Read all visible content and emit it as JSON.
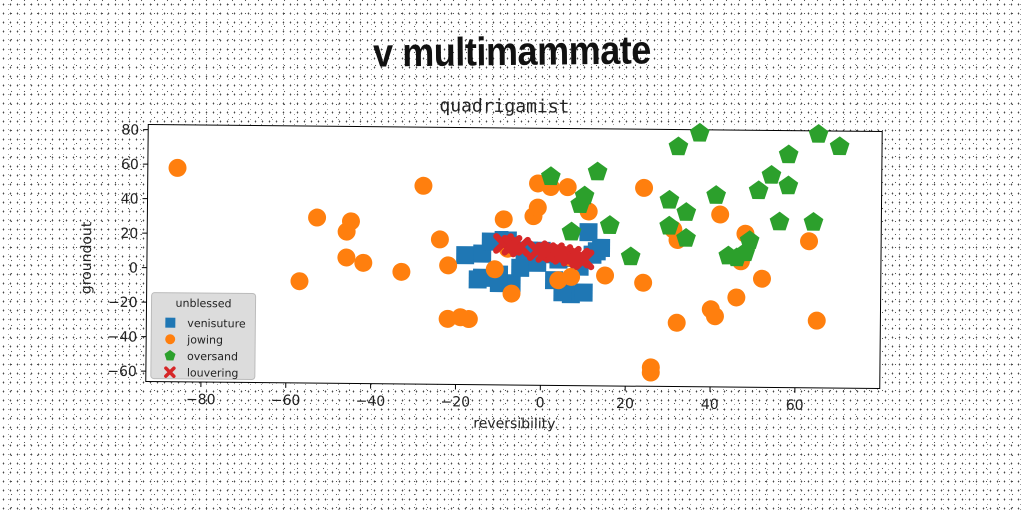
{
  "main_title": "v multimammate",
  "chart_data": {
    "type": "scatter",
    "title": "quadrigamist",
    "xlabel": "reversibility",
    "ylabel": "groundout",
    "xlim": [
      -93,
      80
    ],
    "ylim": [
      -66,
      83
    ],
    "xticks": [
      -80,
      -60,
      -40,
      -20,
      0,
      20,
      40,
      60
    ],
    "yticks": [
      -60,
      -40,
      -20,
      0,
      20,
      40,
      60,
      80
    ],
    "xtick_labels": [
      "−80",
      "−60",
      "−40",
      "−20",
      "0",
      "20",
      "40",
      "60"
    ],
    "ytick_labels": [
      "−60",
      "−40",
      "−20",
      "0",
      "20",
      "40",
      "60",
      "80"
    ],
    "grid": false,
    "legend": {
      "title": "unblessed",
      "placement": "lower-left"
    },
    "series": [
      {
        "name": "venisuture",
        "marker": "square",
        "color": "#1f77b4",
        "points": [
          [
            -18,
            9
          ],
          [
            -14,
            10
          ],
          [
            -12,
            17
          ],
          [
            -10,
            -2
          ],
          [
            -8,
            18
          ],
          [
            -7,
            -7
          ],
          [
            -14,
            -4
          ],
          [
            -15,
            -5
          ],
          [
            -10,
            -7
          ],
          [
            -5,
            2
          ],
          [
            -3,
            12
          ],
          [
            -1,
            5
          ],
          [
            2,
            10
          ],
          [
            4,
            7
          ],
          [
            6,
            8
          ],
          [
            7,
            -13
          ],
          [
            5,
            -12
          ],
          [
            10,
            -12
          ],
          [
            12,
            10
          ],
          [
            13,
            12
          ],
          [
            14,
            14
          ],
          [
            11,
            23
          ],
          [
            9,
            3
          ],
          [
            -4,
            12
          ],
          [
            -9,
            18
          ],
          [
            0,
            12
          ],
          [
            3,
            -5
          ]
        ]
      },
      {
        "name": "jowing",
        "marker": "circle",
        "color": "#ff7f0e",
        "points": [
          [
            -86,
            58
          ],
          [
            -57,
            -7
          ],
          [
            -53,
            30
          ],
          [
            -46,
            22
          ],
          [
            -45,
            28
          ],
          [
            -46,
            7
          ],
          [
            -42,
            4
          ],
          [
            -33,
            -1
          ],
          [
            -28,
            49
          ],
          [
            -24,
            18
          ],
          [
            -22,
            3
          ],
          [
            -22,
            -28
          ],
          [
            -19,
            -27
          ],
          [
            -17,
            -28
          ],
          [
            -11,
            1
          ],
          [
            -9,
            30
          ],
          [
            -8,
            13
          ],
          [
            -7,
            -13
          ],
          [
            -2,
            32
          ],
          [
            -1,
            37
          ],
          [
            -1,
            51
          ],
          [
            2,
            49
          ],
          [
            6,
            49
          ],
          [
            7,
            -3
          ],
          [
            4,
            -5
          ],
          [
            7,
            8
          ],
          [
            11,
            35
          ],
          [
            15,
            -2
          ],
          [
            24,
            -6
          ],
          [
            24,
            49
          ],
          [
            26,
            -55
          ],
          [
            26,
            -58
          ],
          [
            31,
            25
          ],
          [
            32,
            19
          ],
          [
            32,
            -29
          ],
          [
            40,
            -21
          ],
          [
            41,
            -25
          ],
          [
            42,
            34
          ],
          [
            46,
            -14
          ],
          [
            47,
            7
          ],
          [
            48,
            23
          ],
          [
            52,
            -3
          ],
          [
            63,
            19
          ],
          [
            65,
            -27
          ]
        ]
      },
      {
        "name": "oversand",
        "marker": "pentagon",
        "color": "#2ca02c",
        "points": [
          [
            2,
            55
          ],
          [
            9,
            39
          ],
          [
            10,
            44
          ],
          [
            13,
            58
          ],
          [
            7,
            23
          ],
          [
            16,
            27
          ],
          [
            21,
            9
          ],
          [
            30,
            27
          ],
          [
            30,
            42
          ],
          [
            32,
            73
          ],
          [
            34,
            20
          ],
          [
            34,
            35
          ],
          [
            37,
            81
          ],
          [
            41,
            45
          ],
          [
            44,
            10
          ],
          [
            46,
            9
          ],
          [
            48,
            12
          ],
          [
            49,
            19
          ],
          [
            51,
            48
          ],
          [
            54,
            57
          ],
          [
            56,
            30
          ],
          [
            58,
            69
          ],
          [
            58,
            51
          ],
          [
            64,
            30
          ],
          [
            65,
            81
          ],
          [
            70,
            74
          ]
        ]
      },
      {
        "name": "louvering",
        "marker": "x",
        "color": "#d62728",
        "points": [
          [
            -9,
            16
          ],
          [
            -5,
            14
          ],
          [
            -1,
            12
          ],
          [
            3,
            11
          ],
          [
            7,
            9
          ],
          [
            10,
            7
          ],
          [
            -7,
            15
          ],
          [
            1,
            11
          ],
          [
            5,
            10
          ],
          [
            9,
            8
          ]
        ]
      }
    ]
  }
}
